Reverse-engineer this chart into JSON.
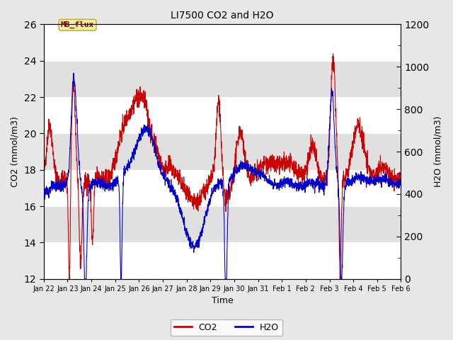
{
  "title": "LI7500 CO2 and H2O",
  "xlabel": "Time",
  "ylabel_left": "CO2 (mmol/m3)",
  "ylabel_right": "H2O (mmol/m3)",
  "co2_ylim": [
    12,
    26
  ],
  "h2o_ylim": [
    0,
    1200
  ],
  "co2_color": "#cc0000",
  "h2o_color": "#0000cc",
  "co2_lw": 0.8,
  "h2o_lw": 0.8,
  "fig_bg": "#e8e8e8",
  "plot_bg": "#ffffff",
  "band_color": "#e0e0e0",
  "annotation_text": "MB_flux",
  "x_tick_labels": [
    "Jan 22",
    "Jan 23",
    "Jan 24",
    "Jan 25",
    "Jan 26",
    "Jan 27",
    "Jan 28",
    "Jan 29",
    "Jan 30",
    "Jan 31",
    "Feb 1",
    "Feb 2",
    "Feb 3",
    "Feb 4",
    "Feb 5",
    "Feb 6"
  ],
  "yticks_left": [
    12,
    14,
    16,
    18,
    20,
    22,
    24,
    26
  ],
  "yticks_right": [
    0,
    200,
    400,
    600,
    800,
    1000,
    1200
  ],
  "seed": 42
}
